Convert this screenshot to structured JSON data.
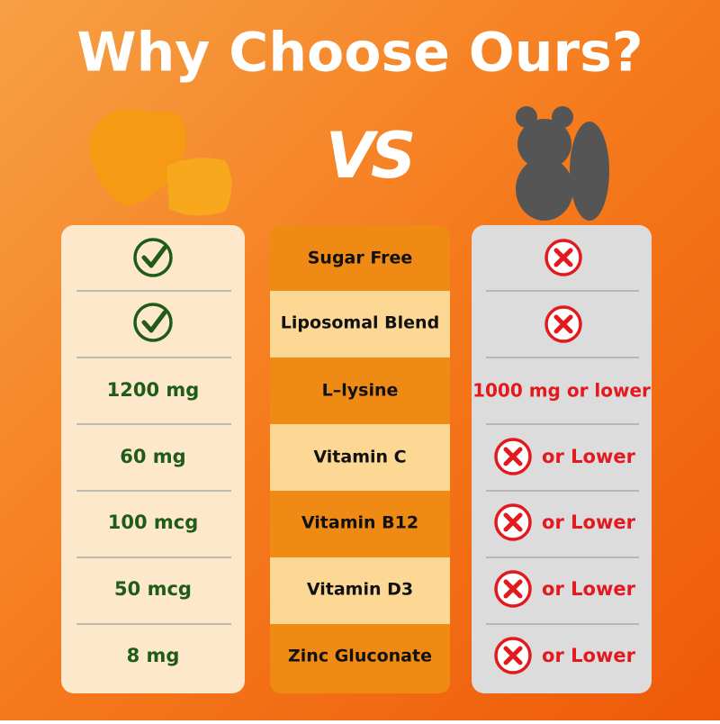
{
  "header": {
    "title": "Why Choose Ours?",
    "vs": "VS"
  },
  "rows": [
    {
      "feature": "Sugar Free"
    },
    {
      "feature": "Liposomal Blend"
    },
    {
      "feature": "L–lysine",
      "ours": "1200 mg",
      "theirs": "1000 mg or lower"
    },
    {
      "feature": "Vitamin C",
      "ours": "60 mg",
      "theirs": "or Lower"
    },
    {
      "feature": "Vitamin B12",
      "ours": "100 mcg",
      "theirs": "or Lower"
    },
    {
      "feature": "Vitamin D3",
      "ours": "50 mcg",
      "theirs": "or Lower"
    },
    {
      "feature": "Zinc Gluconate",
      "ours": "8 mg",
      "theirs": "or Lower"
    }
  ]
}
